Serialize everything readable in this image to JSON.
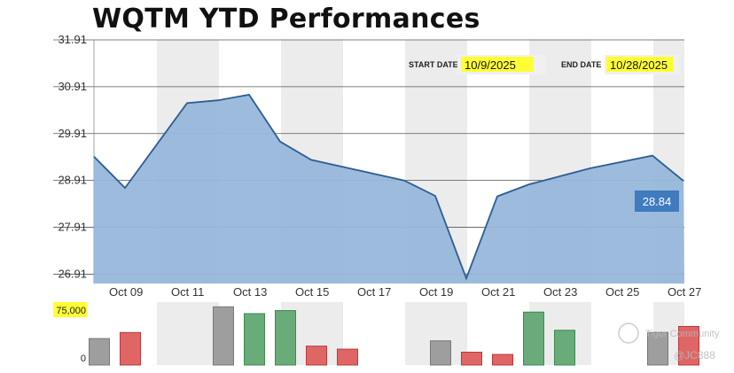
{
  "title": "WQTM YTD Performances",
  "controls": {
    "start_label": "START DATE",
    "start_value": "10/9/2025",
    "end_label": "END DATE",
    "end_value": "10/28/2025"
  },
  "watermark": {
    "brand": "Tiger Community",
    "user": "@JC888"
  },
  "colors": {
    "area_fill": "#98b7da",
    "line": "#2c5d93",
    "band": "#ececec",
    "highlight": "#ffff33",
    "up_bar": "#69ab79",
    "down_bar": "#e06666",
    "neutral_bar": "#9e9e9e",
    "last_price_box": "#3f7bbd"
  },
  "chart_data": [
    {
      "type": "area",
      "title": "WQTM YTD Performances",
      "x": [
        0,
        1,
        3,
        4,
        5,
        6,
        7,
        10,
        11,
        12,
        13,
        14,
        16,
        18,
        19
      ],
      "x_dates": [
        "2025-10-08",
        "2025-10-09",
        "2025-10-11",
        "2025-10-12",
        "2025-10-13",
        "2025-10-14",
        "2025-10-15",
        "2025-10-18",
        "2025-10-19",
        "2025-10-20",
        "2025-10-21",
        "2025-10-22",
        "2025-10-24",
        "2025-10-26",
        "2025-10-27"
      ],
      "y": [
        29.42,
        28.75,
        30.56,
        30.62,
        30.74,
        29.74,
        29.35,
        28.91,
        28.58,
        26.82,
        28.57,
        28.82,
        29.17,
        29.44,
        28.9
      ],
      "x_ticks": [
        "Oct 09",
        "Oct 11",
        "Oct 13",
        "Oct 15",
        "Oct 17",
        "Oct 19",
        "Oct 21",
        "Oct 23",
        "Oct 25",
        "Oct 27"
      ],
      "y_ticks": [
        "31.91",
        "30.91",
        "29.91",
        "28.91",
        "27.91",
        "26.91"
      ],
      "ylim": [
        26.71,
        31.91
      ],
      "last_price_label": "28.84",
      "grid": true
    },
    {
      "type": "bar",
      "title": "",
      "y_ticks": [
        "75,000",
        "0"
      ],
      "ylim": [
        0,
        75000
      ],
      "bars": [
        {
          "x": 0,
          "value": 35000,
          "direction": "neutral"
        },
        {
          "x": 1,
          "value": 43000,
          "direction": "down"
        },
        {
          "x": 4,
          "value": 77000,
          "direction": "neutral"
        },
        {
          "x": 5,
          "value": 68000,
          "direction": "up"
        },
        {
          "x": 6,
          "value": 72000,
          "direction": "up"
        },
        {
          "x": 7,
          "value": 25000,
          "direction": "down"
        },
        {
          "x": 8,
          "value": 21000,
          "direction": "down"
        },
        {
          "x": 11,
          "value": 32000,
          "direction": "neutral"
        },
        {
          "x": 12,
          "value": 17000,
          "direction": "down"
        },
        {
          "x": 13,
          "value": 14000,
          "direction": "down"
        },
        {
          "x": 14,
          "value": 70000,
          "direction": "up"
        },
        {
          "x": 15,
          "value": 46000,
          "direction": "up"
        },
        {
          "x": 18,
          "value": 43000,
          "direction": "neutral"
        },
        {
          "x": 19,
          "value": 51000,
          "direction": "down"
        }
      ]
    }
  ]
}
